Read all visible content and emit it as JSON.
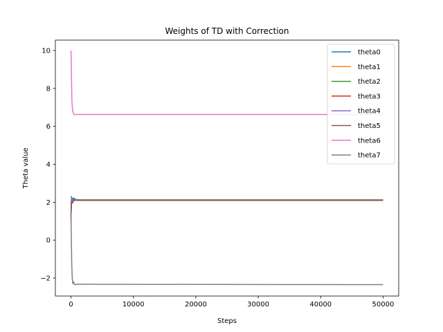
{
  "chart_data": {
    "type": "line",
    "title": "Weights of TD with Correction",
    "xlabel": "Steps",
    "ylabel": "Theta value",
    "xlim": [
      -2500,
      52500
    ],
    "ylim": [
      -2.95,
      10.55
    ],
    "xticks": [
      0,
      10000,
      20000,
      30000,
      40000,
      50000
    ],
    "yticks": [
      -2,
      0,
      2,
      4,
      6,
      8,
      10
    ],
    "tick_labels_x": [
      "0",
      "10000",
      "20000",
      "30000",
      "40000",
      "50000"
    ],
    "tick_labels_y": [
      "−2",
      "0",
      "2",
      "4",
      "6",
      "8",
      "10"
    ],
    "grid": false,
    "legend_position": "top-right",
    "series": [
      {
        "name": "theta0",
        "color": "#1f77b4",
        "points": [
          [
            0,
            1.2
          ],
          [
            80,
            2.3
          ],
          [
            200,
            2.1
          ],
          [
            400,
            2.22
          ],
          [
            800,
            2.14
          ],
          [
            1500,
            2.12
          ],
          [
            50000,
            2.12
          ]
        ]
      },
      {
        "name": "theta1",
        "color": "#ff7f0e",
        "points": [
          [
            0,
            1.1
          ],
          [
            80,
            2.15
          ],
          [
            200,
            2.05
          ],
          [
            500,
            2.14
          ],
          [
            1000,
            2.11
          ],
          [
            50000,
            2.11
          ]
        ]
      },
      {
        "name": "theta2",
        "color": "#2ca02c",
        "points": [
          [
            0,
            1.3
          ],
          [
            80,
            2.25
          ],
          [
            200,
            2.08
          ],
          [
            500,
            2.16
          ],
          [
            1000,
            2.12
          ],
          [
            50000,
            2.12
          ]
        ]
      },
      {
        "name": "theta3",
        "color": "#d62728",
        "points": [
          [
            0,
            1.0
          ],
          [
            80,
            2.1
          ],
          [
            200,
            2.0
          ],
          [
            500,
            2.12
          ],
          [
            1000,
            2.1
          ],
          [
            50000,
            2.1
          ]
        ]
      },
      {
        "name": "theta4",
        "color": "#9467bd",
        "points": [
          [
            0,
            1.2
          ],
          [
            80,
            2.2
          ],
          [
            200,
            2.06
          ],
          [
            500,
            2.15
          ],
          [
            1000,
            2.11
          ],
          [
            50000,
            2.11
          ]
        ]
      },
      {
        "name": "theta5",
        "color": "#8c564b",
        "points": [
          [
            0,
            1.4
          ],
          [
            80,
            2.0
          ],
          [
            200,
            1.95
          ],
          [
            500,
            2.1
          ],
          [
            1000,
            2.1
          ],
          [
            50000,
            2.1
          ]
        ]
      },
      {
        "name": "theta6",
        "color": "#e377c2",
        "points": [
          [
            0,
            10.0
          ],
          [
            60,
            9.0
          ],
          [
            150,
            7.3
          ],
          [
            250,
            6.9
          ],
          [
            400,
            6.66
          ],
          [
            600,
            6.62
          ],
          [
            1000,
            6.63
          ],
          [
            50000,
            6.63
          ]
        ]
      },
      {
        "name": "theta7",
        "color": "#7f7f7f",
        "points": [
          [
            0,
            1.5
          ],
          [
            50,
            0.2
          ],
          [
            120,
            -1.2
          ],
          [
            200,
            -2.0
          ],
          [
            300,
            -2.3
          ],
          [
            400,
            -2.2
          ],
          [
            600,
            -2.35
          ],
          [
            1000,
            -2.33
          ],
          [
            50000,
            -2.35
          ]
        ]
      }
    ]
  }
}
